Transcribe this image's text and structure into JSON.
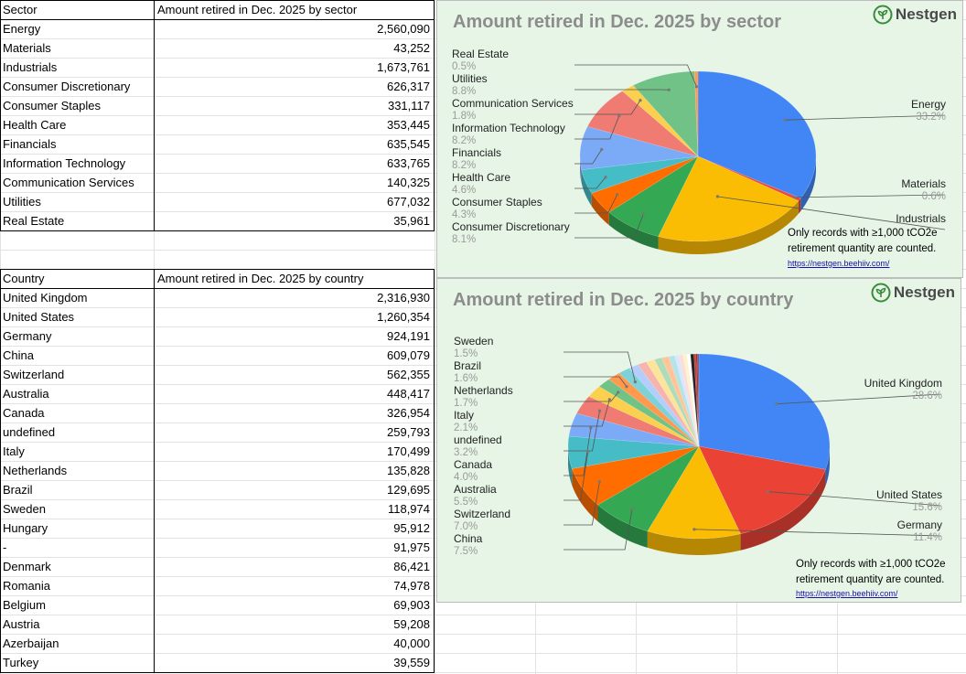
{
  "sector_table": {
    "header": [
      "Sector",
      "Amount retired in Dec. 2025 by sector"
    ],
    "rows": [
      [
        "Energy",
        "2,560,090"
      ],
      [
        "Materials",
        "43,252"
      ],
      [
        "Industrials",
        "1,673,761"
      ],
      [
        "Consumer Discretionary",
        "626,317"
      ],
      [
        "Consumer Staples",
        "331,117"
      ],
      [
        "Health Care",
        "353,445"
      ],
      [
        "Financials",
        "635,545"
      ],
      [
        "Information Technology",
        "633,765"
      ],
      [
        "Communication Services",
        "140,325"
      ],
      [
        "Utilities",
        "677,032"
      ],
      [
        "Real Estate",
        "35,961"
      ]
    ]
  },
  "country_table": {
    "header": [
      "Country",
      "Amount retired in Dec. 2025 by country"
    ],
    "rows": [
      [
        "United Kingdom",
        "2,316,930"
      ],
      [
        "United States",
        "1,260,354"
      ],
      [
        "Germany",
        "924,191"
      ],
      [
        "China",
        "609,079"
      ],
      [
        "Switzerland",
        "562,355"
      ],
      [
        "Australia",
        "448,417"
      ],
      [
        "Canada",
        "326,954"
      ],
      [
        "undefined",
        "259,793"
      ],
      [
        "Italy",
        "170,499"
      ],
      [
        "Netherlands",
        "135,828"
      ],
      [
        "Brazil",
        "129,695"
      ],
      [
        "Sweden",
        "118,974"
      ],
      [
        "Hungary",
        "95,912"
      ],
      [
        "-",
        "91,975"
      ],
      [
        "Denmark",
        "86,421"
      ],
      [
        "Romania",
        "74,978"
      ],
      [
        "Belgium",
        "69,903"
      ],
      [
        "Austria",
        "59,208"
      ],
      [
        "Azerbaijan",
        "40,000"
      ],
      [
        "Turkey",
        "39,559"
      ]
    ]
  },
  "brand": {
    "name": "Nestgen",
    "color": "#3a8a3a"
  },
  "note": {
    "line1": "Only records with ≥1,000 tCO2e",
    "line2": "retirement quantity are counted.",
    "link": "https://nestgen.beehiiv.com/"
  },
  "chart_data": [
    {
      "type": "pie",
      "title": "Amount retired in Dec. 2025 by sector",
      "slices": [
        {
          "name": "Energy",
          "value": 2560090,
          "pct": "33.2%",
          "color": "#4285f4"
        },
        {
          "name": "Materials",
          "value": 43252,
          "pct": "0.6%",
          "color": "#e84a3c"
        },
        {
          "name": "Industrials",
          "value": 1673761,
          "pct": "",
          "color": "#fbbc04"
        },
        {
          "name": "Consumer Discretionary",
          "value": 626317,
          "pct": "8.1%",
          "color": "#34a853"
        },
        {
          "name": "Consumer Staples",
          "value": 331117,
          "pct": "4.3%",
          "color": "#ff6d01"
        },
        {
          "name": "Health Care",
          "value": 353445,
          "pct": "4.6%",
          "color": "#46bdc6"
        },
        {
          "name": "Financials",
          "value": 635545,
          "pct": "8.2%",
          "color": "#7baaf7"
        },
        {
          "name": "Information Technology",
          "value": 633765,
          "pct": "8.2%",
          "color": "#f07b72"
        },
        {
          "name": "Communication Services",
          "value": 140325,
          "pct": "1.8%",
          "color": "#fcd04f"
        },
        {
          "name": "Utilities",
          "value": 677032,
          "pct": "8.8%",
          "color": "#71c287"
        },
        {
          "name": "Real Estate",
          "value": 35961,
          "pct": "0.5%",
          "color": "#ff994d"
        }
      ]
    },
    {
      "type": "pie",
      "title": "Amount retired in Dec. 2025 by country",
      "slices": [
        {
          "name": "United Kingdom",
          "value": 2316930,
          "pct": "28.6%",
          "color": "#4285f4"
        },
        {
          "name": "United States",
          "value": 1260354,
          "pct": "15.6%",
          "color": "#ea4335"
        },
        {
          "name": "Germany",
          "value": 924191,
          "pct": "11.4%",
          "color": "#fbbc04"
        },
        {
          "name": "China",
          "value": 609079,
          "pct": "7.5%",
          "color": "#34a853"
        },
        {
          "name": "Switzerland",
          "value": 562355,
          "pct": "7.0%",
          "color": "#ff6d01"
        },
        {
          "name": "Australia",
          "value": 448417,
          "pct": "5.5%",
          "color": "#46bdc6"
        },
        {
          "name": "Canada",
          "value": 326954,
          "pct": "4.0%",
          "color": "#7baaf7"
        },
        {
          "name": "undefined",
          "value": 259793,
          "pct": "3.2%",
          "color": "#f07b72"
        },
        {
          "name": "Italy",
          "value": 170499,
          "pct": "2.1%",
          "color": "#fcd04f"
        },
        {
          "name": "Netherlands",
          "value": 135828,
          "pct": "1.7%",
          "color": "#71c287"
        },
        {
          "name": "Brazil",
          "value": 129695,
          "pct": "1.6%",
          "color": "#ff994d"
        },
        {
          "name": "Sweden",
          "value": 118974,
          "pct": "1.5%",
          "color": "#7ed1d7"
        },
        {
          "name": "Hungary",
          "value": 95912,
          "pct": "",
          "color": "#b3cefb"
        },
        {
          "name": "-",
          "value": 91975,
          "pct": "",
          "color": "#f7b4ae"
        },
        {
          "name": "Denmark",
          "value": 86421,
          "pct": "",
          "color": "#fde49b"
        },
        {
          "name": "Romania",
          "value": 74978,
          "pct": "",
          "color": "#aedcba"
        },
        {
          "name": "Belgium",
          "value": 69903,
          "pct": "",
          "color": "#ffc599"
        },
        {
          "name": "Austria",
          "value": 59208,
          "pct": "",
          "color": "#b5e3e7"
        },
        {
          "name": "Azerbaijan",
          "value": 40000,
          "pct": "",
          "color": "#d9e7fd"
        },
        {
          "name": "Turkey",
          "value": 39559,
          "pct": "",
          "color": "#fbdcd9"
        },
        {
          "name": "",
          "value": 39000,
          "pct": "",
          "color": "#fef2cd"
        },
        {
          "name": "",
          "value": 36000,
          "pct": "",
          "color": "#ffffff"
        },
        {
          "name": "",
          "value": 34000,
          "pct": "",
          "color": "#222222"
        },
        {
          "name": "",
          "value": 20000,
          "pct": "",
          "color": "#cc3b2e"
        },
        {
          "name": "",
          "value": 16000,
          "pct": "",
          "color": "#9e1e1e"
        },
        {
          "name": "",
          "value": 12000,
          "pct": "",
          "color": "#5a5a9a"
        }
      ]
    }
  ]
}
